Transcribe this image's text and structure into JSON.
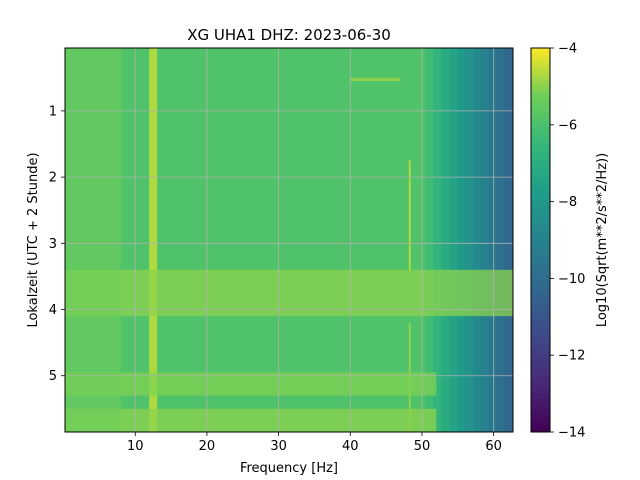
{
  "chart_data": {
    "type": "heatmap",
    "title": "XG UHA1  DHZ: 2023-06-30",
    "xlabel": "Frequency [Hz]",
    "ylabel": "Lokalzeit (UTC + 2 Stunde)",
    "colorbar_label": "Log10(Sqrt(m**2/s**2/Hz))",
    "colormap": "viridis",
    "xlim": [
      0.2,
      62.7
    ],
    "ylim": [
      5.85,
      0.05
    ],
    "y_inverted": true,
    "x_ticks": [
      "10",
      "20",
      "30",
      "40",
      "50",
      "60"
    ],
    "y_ticks": [
      "1",
      "2",
      "3",
      "4",
      "5"
    ],
    "colorbar_range": [
      -14,
      -4
    ],
    "colorbar_ticks": [
      "−4",
      "−6",
      "−8",
      "−10",
      "−12",
      "−14"
    ],
    "grid": true,
    "features": [
      {
        "kind": "background",
        "x_range": [
          0.2,
          50
        ],
        "value": -5.9
      },
      {
        "kind": "high-frequency rolloff",
        "x_range": [
          50,
          62.7
        ],
        "value_range": [
          -5.9,
          -10.5
        ]
      },
      {
        "kind": "vertical band",
        "x": 12.5,
        "y_range": [
          0.05,
          5.85
        ],
        "value": -4.6
      },
      {
        "kind": "vertical line",
        "x": 48.3,
        "y_range": [
          1.75,
          3.45
        ],
        "value": -4.7
      },
      {
        "kind": "vertical line",
        "x": 48.3,
        "y_range": [
          4.2,
          5.85
        ],
        "value": -5.0
      },
      {
        "kind": "horizontal band",
        "x_range": [
          0.2,
          62.7
        ],
        "y_range": [
          3.4,
          4.1
        ],
        "value": -5.0
      },
      {
        "kind": "horizontal band",
        "x_range": [
          0.2,
          52
        ],
        "y_range": [
          4.95,
          5.3
        ],
        "value": -5.1
      },
      {
        "kind": "horizontal band",
        "x_range": [
          0.2,
          52
        ],
        "y_range": [
          5.5,
          5.85
        ],
        "value": -5.0
      },
      {
        "kind": "horizontal streak",
        "x_range": [
          40,
          47
        ],
        "y_range": [
          0.5,
          0.55
        ],
        "value": -4.8
      },
      {
        "kind": "low-frequency band",
        "x_range": [
          0.2,
          8
        ],
        "y_range": [
          0.05,
          5.85
        ],
        "value": -5.3
      }
    ]
  }
}
